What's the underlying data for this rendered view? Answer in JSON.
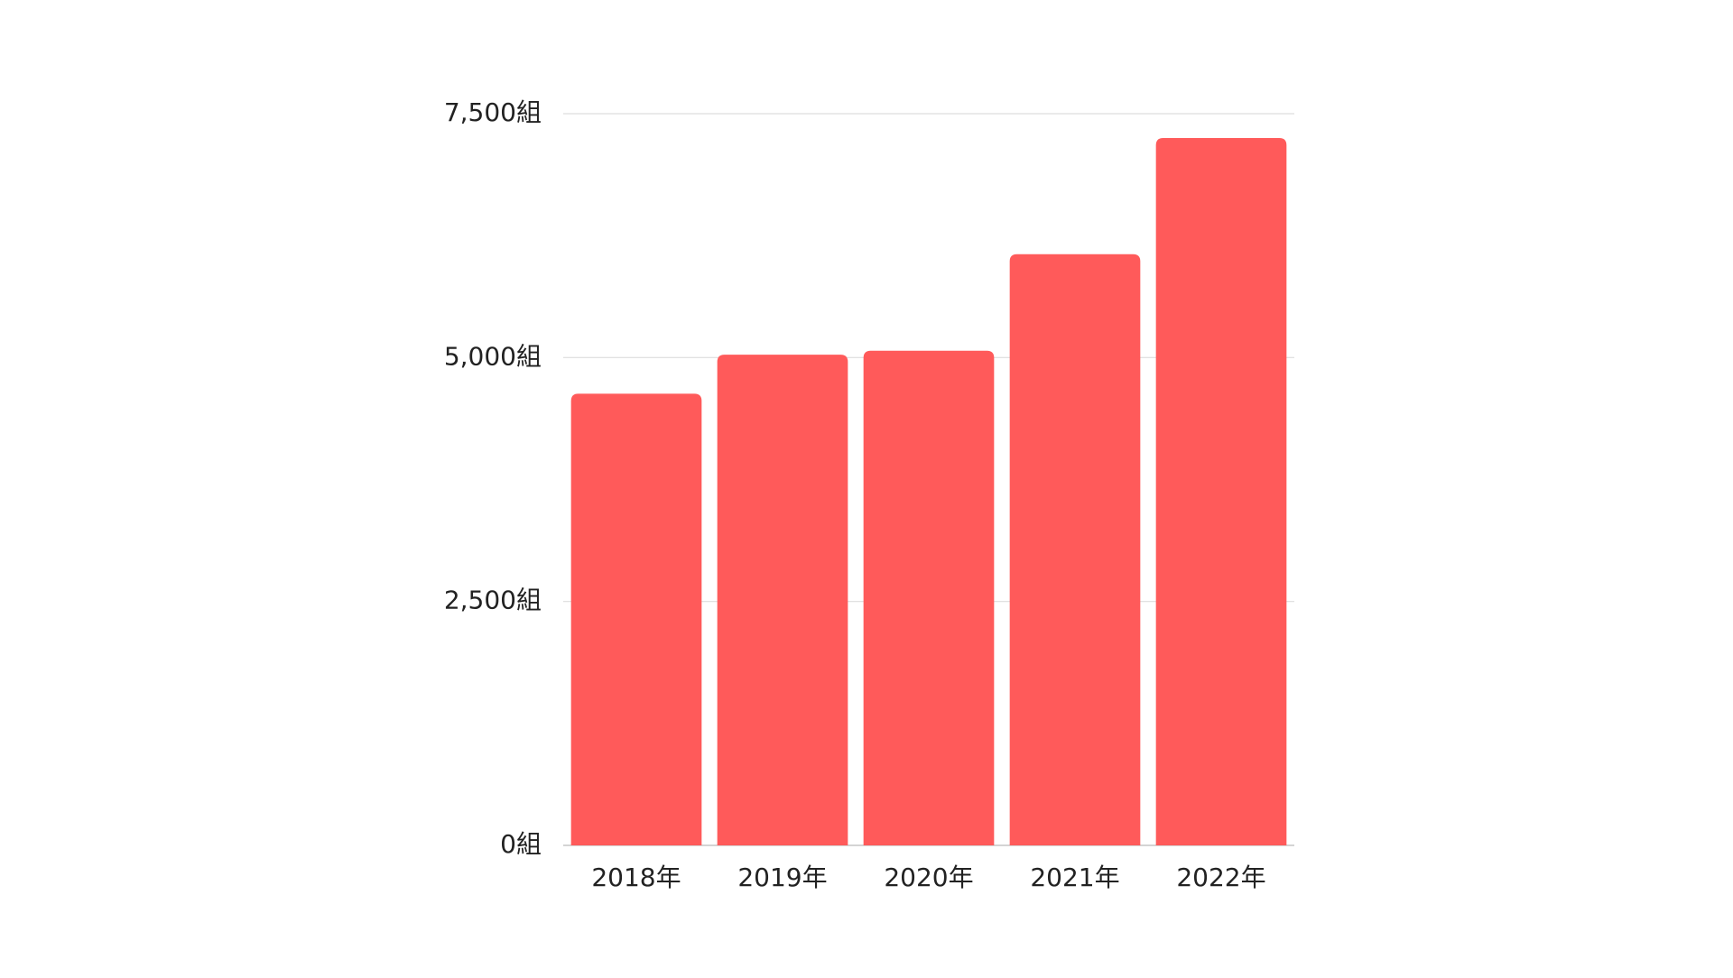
{
  "chart_data": {
    "type": "bar",
    "categories": [
      "2018年",
      "2019年",
      "2020年",
      "2021年",
      "2022年"
    ],
    "values": [
      4630,
      5030,
      5070,
      6060,
      7250
    ],
    "color": "#ff5a5a",
    "ylim": [
      0,
      7500
    ],
    "yticks": [
      {
        "value": 0,
        "label": "0組"
      },
      {
        "value": 2500,
        "label": "2,500組"
      },
      {
        "value": 5000,
        "label": "5,000組"
      },
      {
        "value": 7500,
        "label": "7,500組"
      }
    ],
    "grid": true
  }
}
